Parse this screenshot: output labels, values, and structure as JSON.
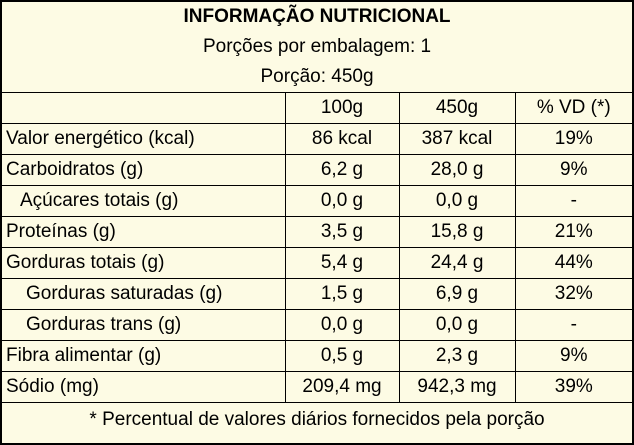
{
  "title": "INFORMAÇÃO NUTRICIONAL",
  "servings_per_package": "Porções por embalagem: 1",
  "serving_size": "Porção: 450g",
  "columns": [
    "",
    "100g",
    "450g",
    "% VD (*)"
  ],
  "rows": [
    {
      "name": "Valor energético (kcal)",
      "per100": "86 kcal",
      "per_serving": "387 kcal",
      "vd": "19%",
      "indent": 0
    },
    {
      "name": "Carboidratos (g)",
      "per100": "6,2 g",
      "per_serving": "28,0 g",
      "vd": "9%",
      "indent": 0
    },
    {
      "name": "Açúcares totais (g)",
      "per100": "0,0 g",
      "per_serving": "0,0 g",
      "vd": "-",
      "indent": 1
    },
    {
      "name": "Proteínas (g)",
      "per100": "3,5 g",
      "per_serving": "15,8 g",
      "vd": "21%",
      "indent": 0
    },
    {
      "name": "Gorduras totais (g)",
      "per100": "5,4 g",
      "per_serving": "24,4 g",
      "vd": "44%",
      "indent": 0
    },
    {
      "name": "Gorduras saturadas (g)",
      "per100": "1,5 g",
      "per_serving": "6,9 g",
      "vd": "32%",
      "indent": 2
    },
    {
      "name": "Gorduras trans (g)",
      "per100": "0,0 g",
      "per_serving": "0,0 g",
      "vd": "-",
      "indent": 2
    },
    {
      "name": "Fibra alimentar (g)",
      "per100": "0,5 g",
      "per_serving": "2,3 g",
      "vd": "9%",
      "indent": 0
    },
    {
      "name": "Sódio (mg)",
      "per100": "209,4 mg",
      "per_serving": "942,3 mg",
      "vd": "39%",
      "indent": 0
    }
  ],
  "footnote": "* Percentual de valores diários fornecidos pela porção"
}
